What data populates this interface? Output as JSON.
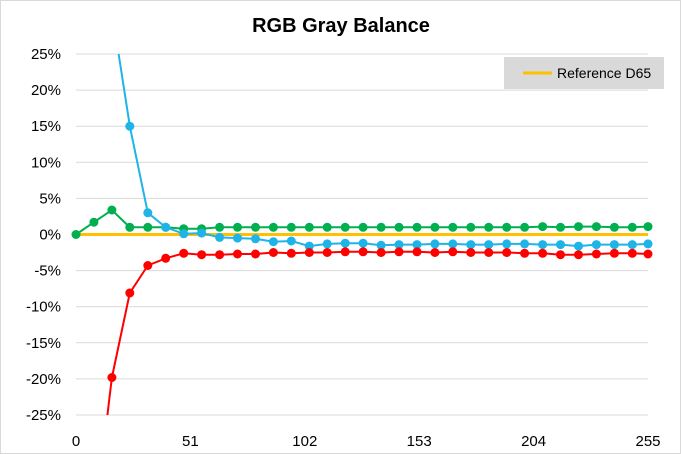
{
  "chart_data": {
    "type": "line",
    "title": "RGB Gray Balance",
    "xlabel": "",
    "ylabel": "",
    "x_ticks": [
      "0",
      "51",
      "102",
      "153",
      "204",
      "255"
    ],
    "x_tick_values": [
      0,
      51,
      102,
      153,
      204,
      255
    ],
    "y_ticks": [
      "25%",
      "20%",
      "15%",
      "10%",
      "5%",
      "0%",
      "-5%",
      "-10%",
      "-15%",
      "-20%",
      "-25%"
    ],
    "y_tick_values": [
      25,
      20,
      15,
      10,
      5,
      0,
      -5,
      -10,
      -15,
      -20,
      -25
    ],
    "xlim": [
      0,
      255
    ],
    "ylim": [
      -25,
      25
    ],
    "grid": "horizontal",
    "legend": {
      "position": "top-right",
      "entries": [
        {
          "label": "Reference D65",
          "color": "#ffc000"
        }
      ]
    },
    "reference_line": {
      "name": "Reference D65",
      "value": 0,
      "color": "#ffc000"
    },
    "x": [
      0,
      8,
      16,
      24,
      32,
      40,
      48,
      56,
      64,
      72,
      80,
      88,
      96,
      104,
      112,
      120,
      128,
      136,
      144,
      152,
      160,
      168,
      176,
      184,
      192,
      200,
      208,
      216,
      224,
      232,
      240,
      248,
      255
    ],
    "series": [
      {
        "color": "#00b050",
        "values": [
          0.0,
          1.7,
          3.4,
          1.0,
          1.0,
          1.0,
          0.8,
          0.8,
          1.0,
          1.0,
          1.0,
          1.0,
          1.0,
          1.0,
          1.0,
          1.0,
          1.0,
          1.0,
          1.0,
          1.0,
          1.0,
          1.0,
          1.0,
          1.0,
          1.0,
          1.0,
          1.1,
          1.0,
          1.1,
          1.1,
          1.0,
          1.0,
          1.1
        ]
      },
      {
        "color": "#1fb4e8",
        "values": [
          null,
          null,
          null,
          15.0,
          3.0,
          1.0,
          0.1,
          0.2,
          -0.4,
          -0.5,
          -0.6,
          -1.0,
          -0.9,
          -1.6,
          -1.3,
          -1.2,
          -1.2,
          -1.5,
          -1.4,
          -1.4,
          -1.3,
          -1.3,
          -1.4,
          -1.4,
          -1.3,
          -1.3,
          -1.4,
          -1.4,
          -1.6,
          -1.4,
          -1.4,
          -1.4,
          -1.3
        ]
      },
      {
        "color": "#ff0000",
        "values": [
          null,
          null,
          -19.8,
          -8.1,
          -4.3,
          -3.3,
          -2.6,
          -2.8,
          -2.8,
          -2.7,
          -2.7,
          -2.5,
          -2.6,
          -2.5,
          -2.5,
          -2.4,
          -2.4,
          -2.5,
          -2.4,
          -2.4,
          -2.5,
          -2.4,
          -2.5,
          -2.5,
          -2.5,
          -2.6,
          -2.6,
          -2.8,
          -2.8,
          -2.7,
          -2.6,
          -2.6,
          -2.7
        ]
      }
    ],
    "offscale_lines": [
      {
        "series": 1,
        "from": [
          19,
          25
        ],
        "to": [
          24,
          15.0
        ]
      },
      {
        "series": 2,
        "from": [
          14,
          -25
        ],
        "to": [
          16,
          -19.8
        ]
      }
    ]
  }
}
